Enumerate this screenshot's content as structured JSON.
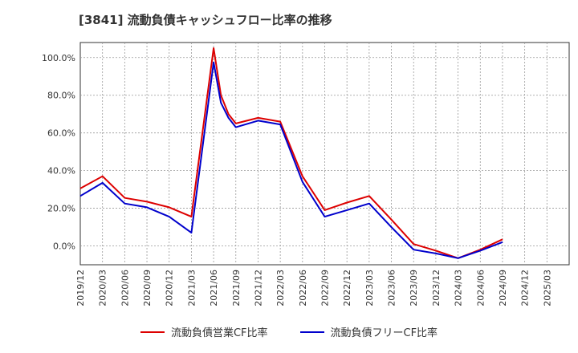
{
  "chart_data": {
    "type": "line",
    "title": "[3841]  流動負債キャッシュフロー比率の推移",
    "xlabel": "",
    "ylabel": "",
    "ylim": [
      -10,
      108
    ],
    "yticks": [
      0,
      20,
      40,
      60,
      80,
      100
    ],
    "ytick_labels": [
      "0.0%",
      "20.0%",
      "40.0%",
      "60.0%",
      "80.0%",
      "100.0%"
    ],
    "x_tick_labels": [
      "2019/12",
      "2020/03",
      "2020/06",
      "2020/09",
      "2020/12",
      "2021/03",
      "2021/06",
      "2021/09",
      "2021/12",
      "2022/03",
      "2022/06",
      "2022/09",
      "2022/12",
      "2023/03",
      "2023/06",
      "2023/09",
      "2023/12",
      "2024/03",
      "2024/06",
      "2024/09",
      "2024/12",
      "2025/03"
    ],
    "grid": true,
    "series": [
      {
        "name": "流動負債営業CF比率",
        "color": "#dd0000",
        "points": [
          {
            "x": 0,
            "y": 30.5
          },
          {
            "x": 1,
            "y": 37
          },
          {
            "x": 2,
            "y": 25.5
          },
          {
            "x": 3,
            "y": 23.5
          },
          {
            "x": 4,
            "y": 20.5
          },
          {
            "x": 5,
            "y": 15.5
          },
          {
            "x": 6,
            "y": 105
          },
          {
            "x": 6.33,
            "y": 80
          },
          {
            "x": 6.67,
            "y": 70
          },
          {
            "x": 7,
            "y": 65
          },
          {
            "x": 8,
            "y": 68
          },
          {
            "x": 9,
            "y": 66
          },
          {
            "x": 10,
            "y": 37
          },
          {
            "x": 11,
            "y": 19
          },
          {
            "x": 12,
            "y": 23
          },
          {
            "x": 13,
            "y": 26.5
          },
          {
            "x": 14,
            "y": 14
          },
          {
            "x": 15,
            "y": 1
          },
          {
            "x": 16,
            "y": -2.5
          },
          {
            "x": 17,
            "y": -6.5
          },
          {
            "x": 18,
            "y": -2
          },
          {
            "x": 19,
            "y": 3.5
          }
        ]
      },
      {
        "name": "流動負債フリーCF比率",
        "color": "#0000cc",
        "points": [
          {
            "x": 0,
            "y": 26.5
          },
          {
            "x": 1,
            "y": 33.5
          },
          {
            "x": 2,
            "y": 22.5
          },
          {
            "x": 3,
            "y": 20.5
          },
          {
            "x": 4,
            "y": 15.5
          },
          {
            "x": 5,
            "y": 7
          },
          {
            "x": 6,
            "y": 97.5
          },
          {
            "x": 6.33,
            "y": 76
          },
          {
            "x": 6.67,
            "y": 68
          },
          {
            "x": 7,
            "y": 63
          },
          {
            "x": 8,
            "y": 66.5
          },
          {
            "x": 9,
            "y": 64.5
          },
          {
            "x": 10,
            "y": 34
          },
          {
            "x": 11,
            "y": 15.5
          },
          {
            "x": 12,
            "y": 19
          },
          {
            "x": 13,
            "y": 22.5
          },
          {
            "x": 14,
            "y": 10
          },
          {
            "x": 15,
            "y": -2
          },
          {
            "x": 16,
            "y": -4
          },
          {
            "x": 17,
            "y": -6.5
          },
          {
            "x": 18,
            "y": -2.5
          },
          {
            "x": 19,
            "y": 2
          }
        ]
      }
    ]
  }
}
